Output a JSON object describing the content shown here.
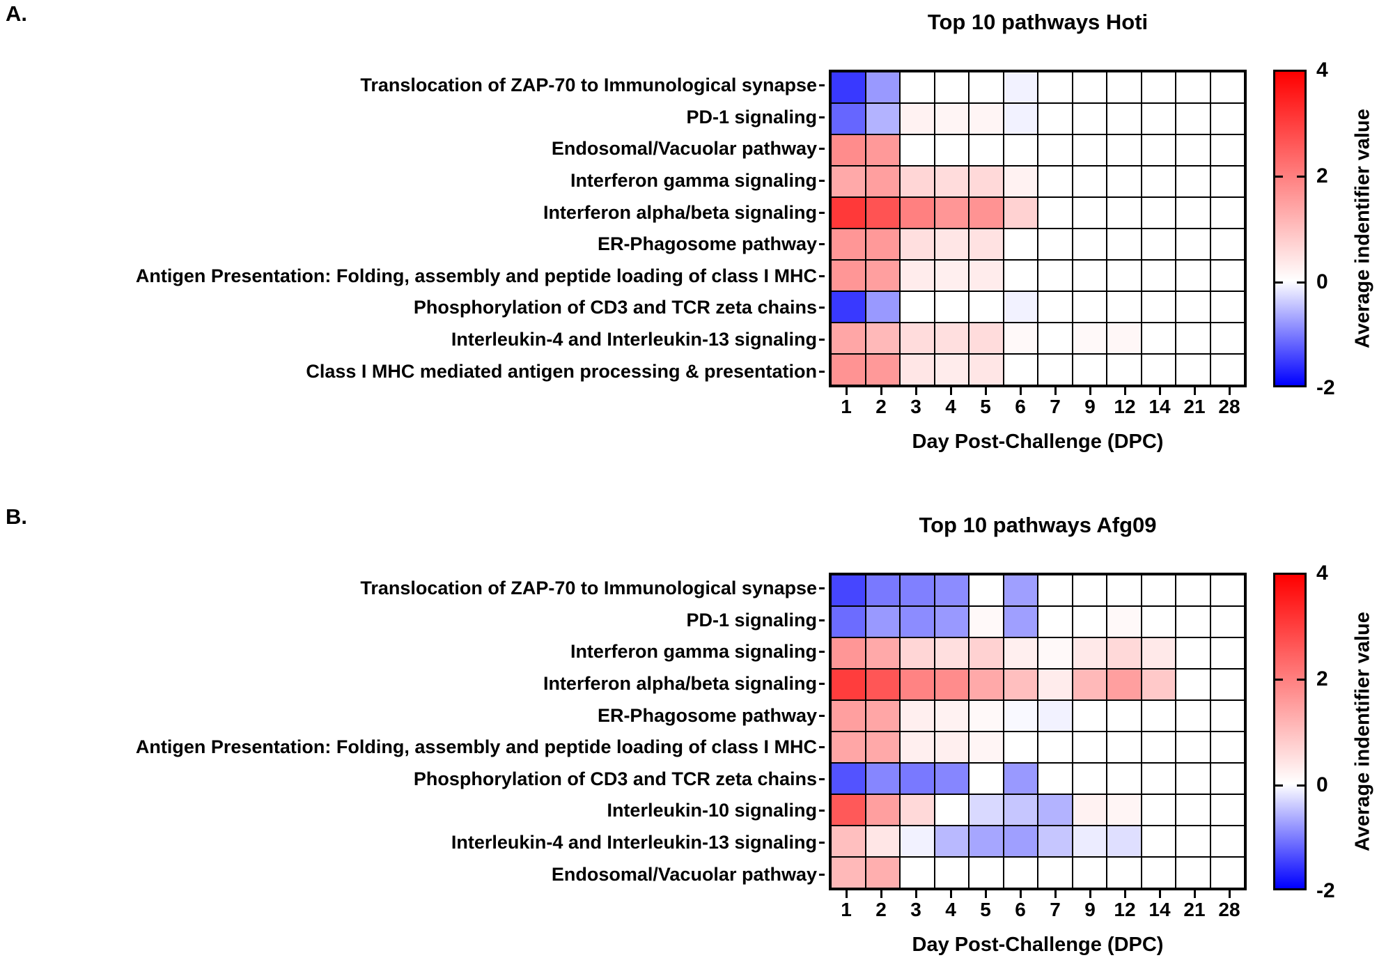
{
  "figure": {
    "xaxis_label": "Day Post-Challenge (DPC)",
    "colorbar": {
      "tick_labels": [
        "4",
        "2",
        "0",
        "-2"
      ],
      "axis_label": "Average indentifier value",
      "max_color": "#ff0000",
      "mid_color": "#ffffff",
      "min_color": "#0000ff",
      "vmin": -2,
      "vmax": 4
    }
  },
  "chart_data": [
    {
      "type": "heatmap",
      "panel_label": "A.",
      "title": "Top 10 pathways Hoti",
      "xlabel": "Day Post-Challenge (DPC)",
      "colorbar_label": "Average indentifier value",
      "vmin": -2,
      "vmax": 4,
      "x": [
        1,
        2,
        3,
        4,
        5,
        6,
        7,
        9,
        12,
        14,
        21,
        28
      ],
      "y": [
        "Translocation of ZAP-70 to Immunological synapse",
        "PD-1 signaling",
        "Endosomal/Vacuolar pathway",
        "Interferon gamma signaling",
        "Interferon alpha/beta signaling",
        "ER-Phagosome pathway",
        "Antigen Presentation: Folding, assembly and peptide loading of class I MHC",
        "Phosphorylation of CD3 and TCR zeta chains",
        "Interleukin-4 and Interleukin-13 signaling",
        "Class I MHC mediated antigen processing & presentation"
      ],
      "values": [
        [
          -1.55,
          -0.8,
          0,
          0,
          0,
          -0.1,
          0,
          0,
          0,
          0,
          0,
          0
        ],
        [
          -1.2,
          -0.6,
          0.2,
          0.15,
          0.15,
          -0.1,
          0,
          0,
          0,
          0,
          0,
          0
        ],
        [
          1.8,
          1.6,
          0,
          0,
          0,
          0,
          0,
          0,
          0,
          0,
          0,
          0
        ],
        [
          1.35,
          1.5,
          0.65,
          0.55,
          0.6,
          0.2,
          0,
          0,
          0,
          0,
          0,
          0
        ],
        [
          3.1,
          2.7,
          2.0,
          1.65,
          1.7,
          0.7,
          0,
          0,
          0,
          0,
          0,
          0
        ],
        [
          1.65,
          1.6,
          0.5,
          0.4,
          0.45,
          0,
          0,
          0,
          0,
          0,
          0,
          0
        ],
        [
          1.65,
          1.5,
          0.3,
          0.25,
          0.3,
          0,
          0,
          0,
          0,
          0,
          0,
          0
        ],
        [
          -1.55,
          -0.8,
          0,
          0,
          0,
          -0.1,
          0,
          0,
          0,
          0,
          0,
          0
        ],
        [
          1.4,
          1.1,
          0.55,
          0.5,
          0.55,
          0.1,
          0,
          0.1,
          0.12,
          0,
          0,
          0
        ],
        [
          1.7,
          1.6,
          0.4,
          0.3,
          0.4,
          0,
          0,
          0,
          0,
          0,
          0,
          0
        ]
      ]
    },
    {
      "type": "heatmap",
      "panel_label": "B.",
      "title": "Top 10 pathways Afg09",
      "xlabel": "Day Post-Challenge (DPC)",
      "colorbar_label": "Average indentifier value",
      "vmin": -2,
      "vmax": 4,
      "x": [
        1,
        2,
        3,
        4,
        5,
        6,
        7,
        9,
        12,
        14,
        21,
        28
      ],
      "y": [
        "Translocation of ZAP-70 to Immunological synapse",
        "PD-1 signaling",
        "Interferon gamma signaling",
        "Interferon alpha/beta signaling",
        "ER-Phagosome pathway",
        "Antigen Presentation: Folding, assembly and peptide loading of class I MHC",
        "Phosphorylation of CD3 and TCR zeta chains",
        "Interleukin-10 signaling",
        "Interleukin-4 and Interleukin-13 signaling",
        "Endosomal/Vacuolar pathway"
      ],
      "values": [
        [
          -1.45,
          -1.05,
          -1.0,
          -0.9,
          0,
          -0.75,
          0,
          0,
          0,
          0,
          0,
          0
        ],
        [
          -1.15,
          -0.8,
          -0.9,
          -0.8,
          0.1,
          -0.75,
          0,
          0,
          0.1,
          0,
          0,
          0
        ],
        [
          1.65,
          1.35,
          0.65,
          0.5,
          0.7,
          0.25,
          0.1,
          0.35,
          0.6,
          0.35,
          0,
          0
        ],
        [
          3.05,
          2.65,
          1.95,
          1.8,
          1.35,
          1.0,
          0.3,
          1.1,
          1.5,
          0.85,
          0,
          0
        ],
        [
          1.5,
          1.4,
          0.25,
          0.2,
          0.1,
          -0.05,
          -0.1,
          0,
          0,
          0,
          0,
          0
        ],
        [
          1.4,
          1.35,
          0.25,
          0.25,
          0.15,
          0,
          0,
          0,
          0,
          0,
          0,
          0
        ],
        [
          -1.35,
          -0.95,
          -1.05,
          -0.95,
          0,
          -0.8,
          0,
          0,
          0,
          0,
          0,
          0
        ],
        [
          2.6,
          1.5,
          0.6,
          0,
          -0.3,
          -0.45,
          -0.6,
          0.2,
          0.15,
          0,
          0,
          0
        ],
        [
          1.0,
          0.4,
          -0.1,
          -0.55,
          -0.7,
          -0.75,
          -0.45,
          -0.15,
          -0.25,
          0,
          0,
          0
        ],
        [
          1.1,
          1.25,
          0,
          0,
          0,
          0,
          0,
          0,
          0,
          0,
          0,
          0
        ]
      ]
    }
  ]
}
